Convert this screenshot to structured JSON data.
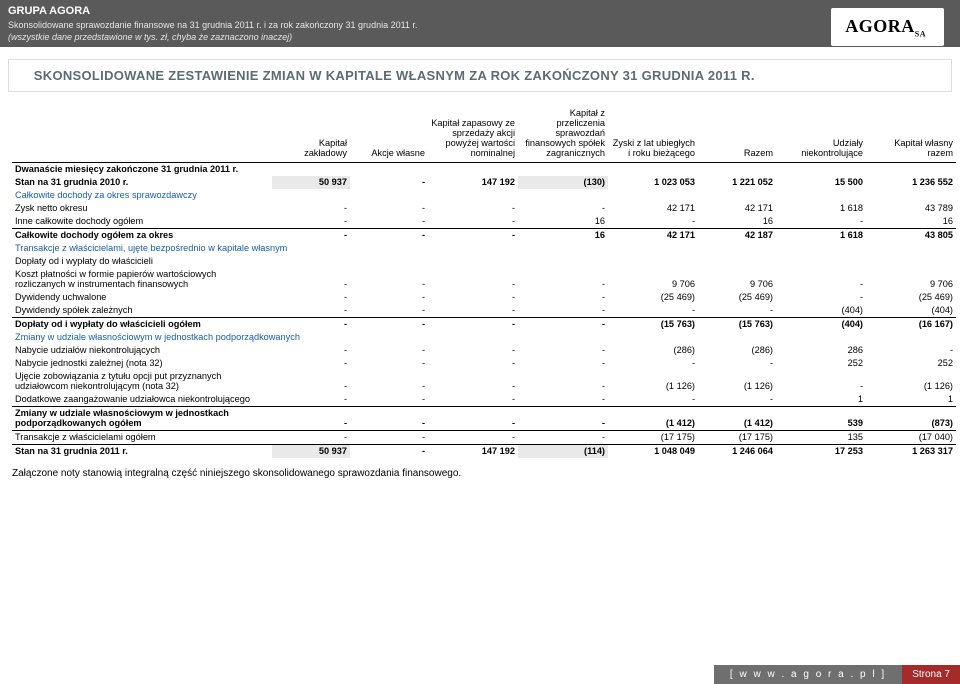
{
  "header": {
    "company": "GRUPA AGORA",
    "line1": "Skonsolidowane sprawozdanie finansowe na 31 grudnia 2011 r. i za rok zakończony 31 grudnia 2011 r.",
    "line2": "(wszystkie dane przedstawione w tys. zł, chyba że zaznaczono inaczej)",
    "logo_main": "AGORA",
    "logo_sub": "SA"
  },
  "title": "SKONSOLIDOWANE ZESTAWIENIE ZMIAN W KAPITALE WŁASNYM ZA ROK ZAKOŃCZONY 31 GRUDNIA 2011 R.",
  "table": {
    "columns": [
      "",
      "Kapitał zakładowy",
      "Akcje własne",
      "Kapitał zapasowy ze sprzedaży akcji powyżej wartości nominalnej",
      "Kapitał z przeliczenia sprawozdań finansowych spółek zagranicznych",
      "Zyski z lat ubiegłych i roku bieżącego",
      "Razem",
      "Udziały niekontrolujące",
      "Kapitał własny razem"
    ],
    "section1": "Dwanaście miesięcy zakończone 31 grudnia 2011 r.",
    "rows": [
      {
        "label": "Stan na 31 grudnia 2010 r.",
        "v": [
          "50 937",
          "-",
          "147 192",
          "(130)",
          "1 023 053",
          "1 221 052",
          "15 500",
          "1 236 552"
        ],
        "bold": true,
        "grey": [
          0,
          3
        ]
      },
      {
        "label": "Całkowite dochody za okres sprawozdawczy",
        "section": true
      },
      {
        "label": "Zysk  netto okresu",
        "v": [
          "-",
          "-",
          "-",
          "-",
          "42 171",
          "42 171",
          "1 618",
          "43 789"
        ]
      },
      {
        "label": "Inne całkowite dochody ogółem",
        "v": [
          "-",
          "-",
          "-",
          "16",
          "-",
          "16",
          "-",
          "16"
        ]
      },
      {
        "label": "Całkowite dochody ogółem  za okres",
        "v": [
          "-",
          "-",
          "-",
          "16",
          "42 171",
          "42 187",
          "1 618",
          "43 805"
        ],
        "bold": true,
        "bordertop": true
      },
      {
        "label": "Transakcje z właścicielami, ujęte bezpośrednio w kapitale własnym",
        "section": true
      },
      {
        "label": "Dopłaty od i wypłaty do właścicieli",
        "section": true,
        "black": true
      },
      {
        "label": "Koszt płatności w formie papierów wartościowych rozliczanych w instrumentach finansowych",
        "v": [
          "-",
          "-",
          "-",
          "-",
          "9 706",
          "9 706",
          "-",
          "9 706"
        ]
      },
      {
        "label": "Dywidendy uchwalone",
        "v": [
          "-",
          "-",
          "-",
          "-",
          "(25 469)",
          "(25 469)",
          "-",
          "(25 469)"
        ]
      },
      {
        "label": "Dywidendy spółek zależnych",
        "v": [
          "-",
          "-",
          "-",
          "-",
          "-",
          "-",
          "(404)",
          "(404)"
        ]
      },
      {
        "label": "Dopłaty od i wypłaty do właścicieli ogółem",
        "v": [
          "-",
          "-",
          "-",
          "-",
          "(15 763)",
          "(15 763)",
          "(404)",
          "(16 167)"
        ],
        "bold": true,
        "bordertop": true
      },
      {
        "label": "Zmiany w udziale własnościowym w jednostkach podporządkowanych",
        "section": true
      },
      {
        "label": "Nabycie udziałów niekontrolujących",
        "v": [
          "-",
          "-",
          "-",
          "-",
          "(286)",
          "(286)",
          "286",
          "-"
        ]
      },
      {
        "label": "Nabycie jednostki zależnej (nota 32)",
        "v": [
          "-",
          "-",
          "-",
          "-",
          "-",
          "-",
          "252",
          "252"
        ]
      },
      {
        "label": "Ujęcie zobowiązania z tytułu opcji put przyznanych udziałowcom niekontrolującym (nota 32)",
        "v": [
          "-",
          "-",
          "-",
          "-",
          "(1 126)",
          "(1 126)",
          "-",
          "(1 126)"
        ]
      },
      {
        "label": "Dodatkowe zaangażowanie udziałowca niekontrolującego",
        "v": [
          "-",
          "-",
          "-",
          "-",
          "-",
          "-",
          "1",
          "1"
        ]
      },
      {
        "label": "Zmiany w udziale własnościowym w jednostkach podporządkowanych ogółem",
        "v": [
          "-",
          "-",
          "-",
          "-",
          "(1 412)",
          "(1 412)",
          "539",
          "(873)"
        ],
        "bold": true,
        "bordertop": true
      },
      {
        "label": "Transakcje z właścicielami ogółem",
        "v": [
          "-",
          "-",
          "-",
          "-",
          "(17 175)",
          "(17 175)",
          "135",
          "(17 040)"
        ],
        "bordertop": true
      },
      {
        "label": "Stan na 31 grudnia 2011 r.",
        "v": [
          "50 937",
          "-",
          "147 192",
          "(114)",
          "1 048 049",
          "1 246 064",
          "17 253",
          "1 263 317"
        ],
        "bold": true,
        "grey": [
          0,
          3
        ],
        "bordertop": true
      }
    ]
  },
  "footnote": "Załączone noty stanowią integralną część niniejszego skonsolidowanego sprawozdania finansowego.",
  "footer": {
    "url": "[ w w w . a g o r a . p l ]",
    "page": "Strona 7"
  }
}
